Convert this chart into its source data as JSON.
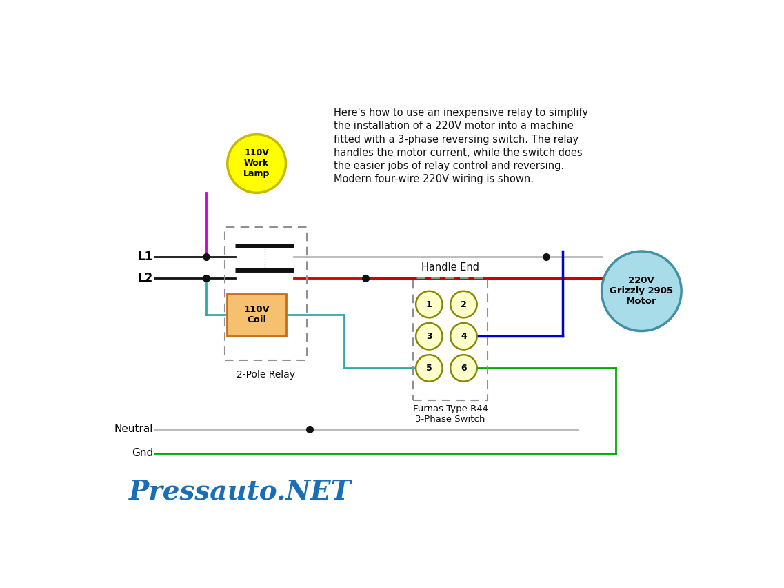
{
  "description_text": "Here's how to use an inexpensive relay to simplify\nthe installation of a 220V motor into a machine\nfitted with a 3-phase reversing switch. The relay\nhandles the motor current, while the switch does\nthe easier jobs of relay control and reversing.\nModern four-wire 220V wiring is shown.",
  "watermark": "Pressauto.NET",
  "bg_color": "#ffffff",
  "lamp_color": "#ffff00",
  "lamp_border_color": "#c8b800",
  "lamp_text": "110V\nWork\nLamp",
  "motor_color": "#a8dce8",
  "motor_border_color": "#4090a8",
  "motor_text": "220V\nGrizzly 2905\nMotor",
  "coil_color": "#f5c070",
  "coil_border_color": "#c07020",
  "coil_text": "110V\nCoil",
  "relay_label": "2-Pole Relay",
  "switch_label_top": "Handle End",
  "switch_label_bottom": "Furnas Type R44\n3-Phase Switch",
  "wire_gray": "#b8b8b8",
  "wire_red": "#cc0000",
  "wire_blue": "#0000cc",
  "wire_green": "#00aa00",
  "wire_teal": "#30a8a8",
  "wire_magenta": "#cc00cc",
  "wire_black": "#111111",
  "node_dot": "#111111",
  "dashed_color": "#909090",
  "switch_fill": "#ffffcc",
  "switch_edge": "#888800"
}
